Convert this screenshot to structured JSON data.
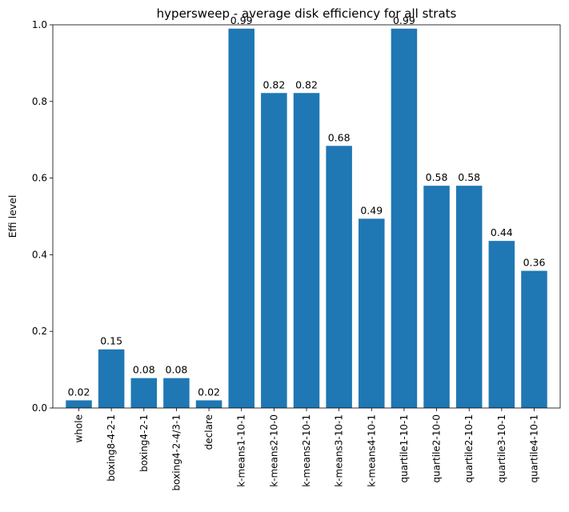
{
  "chart_data": {
    "type": "bar",
    "title": "hypersweep - average disk efficiency for all strats",
    "xlabel": "",
    "ylabel": "Effi level",
    "ylim": [
      0,
      1.0
    ],
    "yticks": [
      "0.0",
      "0.2",
      "0.4",
      "0.6",
      "0.8",
      "1.0"
    ],
    "categories": [
      "whole",
      "boxing8-4-2-1",
      "boxing4-2-1",
      "boxing4-2-4/3-1",
      "declare",
      "k-means1-10-1",
      "k-means2-10-0",
      "k-means2-10-1",
      "k-means3-10-1",
      "k-means4-10-1",
      "quartile1-10-1",
      "quartile2-10-0",
      "quartile2-10-1",
      "quartile3-10-1",
      "quartile4-10-1"
    ],
    "values": [
      0.02,
      0.153,
      0.078,
      0.078,
      0.02,
      0.99,
      0.822,
      0.822,
      0.684,
      0.494,
      0.99,
      0.58,
      0.58,
      0.436,
      0.358
    ],
    "value_labels": [
      "0.02",
      "0.15",
      "0.08",
      "0.08",
      "0.02",
      "0.99",
      "0.82",
      "0.82",
      "0.68",
      "0.49",
      "0.99",
      "0.58",
      "0.58",
      "0.44",
      "0.36"
    ],
    "bar_color": "#1f77b4",
    "grid": false,
    "legend": "none"
  }
}
